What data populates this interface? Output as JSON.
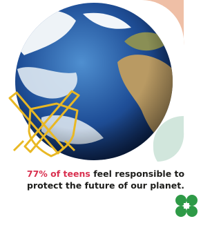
{
  "caption": {
    "highlight": "77% of teens",
    "text": "feel responsible to protect the future of our planet."
  }
}
